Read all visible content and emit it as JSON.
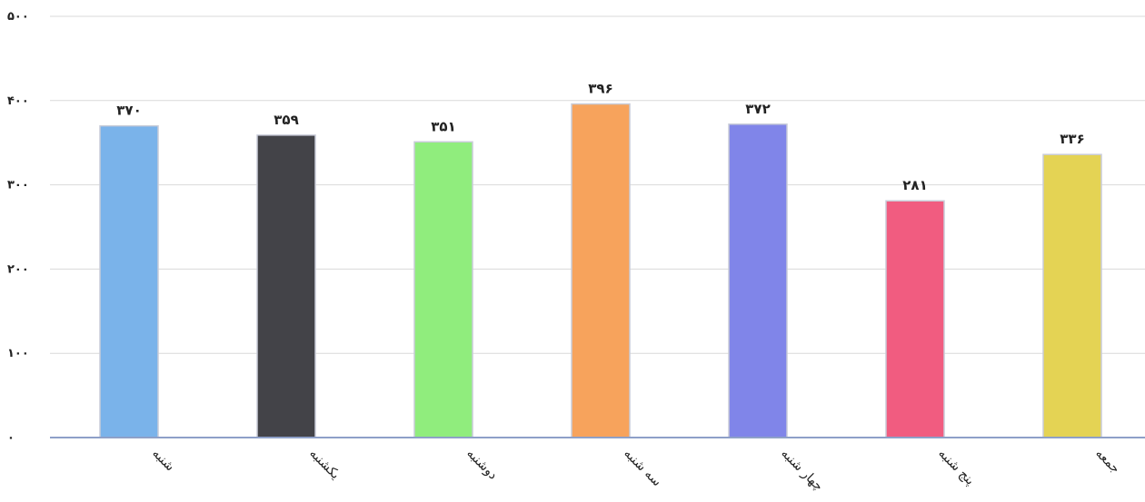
{
  "chart_data": {
    "type": "bar",
    "title": "",
    "xlabel": "",
    "ylabel": "",
    "categories": [
      "شنبه",
      "یکشنبه",
      "دوشنبه",
      "سه شنبه",
      "چهار شنبه",
      "پنج شنبه",
      "جمعه"
    ],
    "values": [
      370,
      359,
      351,
      396,
      372,
      281,
      336
    ],
    "value_labels": [
      "۳۷۰",
      "۳۵۹",
      "۳۵۱",
      "۳۹۶",
      "۳۷۲",
      "۲۸۱",
      "۳۳۶"
    ],
    "colors": [
      "#7ab3ea",
      "#434348",
      "#90ed7d",
      "#f7a35c",
      "#8085e9",
      "#f15c80",
      "#e4d354"
    ],
    "ylim": [
      0,
      500
    ],
    "y_ticks": [
      0,
      100,
      200,
      300,
      400,
      500
    ],
    "y_tick_labels": [
      "۰",
      "۱۰۰",
      "۲۰۰",
      "۳۰۰",
      "۴۰۰",
      "۵۰۰"
    ],
    "grid": true,
    "legend": "none"
  }
}
